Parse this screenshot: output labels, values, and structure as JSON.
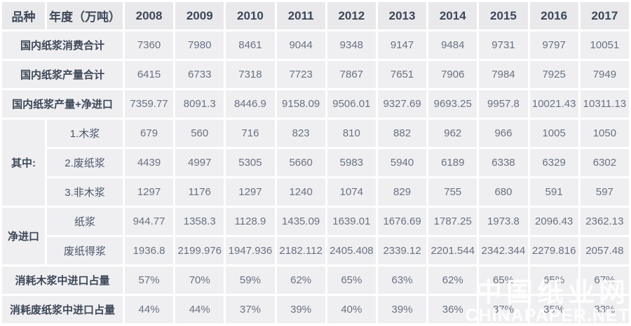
{
  "table": {
    "header": {
      "product_label": "品种",
      "year_label": "年度（万吨）",
      "years": [
        "2008",
        "2009",
        "2010",
        "2011",
        "2012",
        "2013",
        "2014",
        "2015",
        "2016",
        "2017"
      ]
    },
    "sections": [
      {
        "kind": "merged",
        "label": "国内纸浆消费合计",
        "values": [
          "7360",
          "7980",
          "8461",
          "9044",
          "9348",
          "9147",
          "9484",
          "9731",
          "9797",
          "10051"
        ]
      },
      {
        "kind": "merged",
        "label": "国内纸浆产量合计",
        "values": [
          "6415",
          "6733",
          "7318",
          "7723",
          "7867",
          "7651",
          "7906",
          "7984",
          "7925",
          "7949"
        ]
      },
      {
        "kind": "merged",
        "label": "国内纸浆产量+净进口",
        "values": [
          "7359.77",
          "8091.3",
          "8446.9",
          "9158.09",
          "9506.01",
          "9327.69",
          "9693.25",
          "9957.8",
          "10021.43",
          "10311.13"
        ]
      },
      {
        "kind": "grouped",
        "group_label": "其中:",
        "rows": [
          {
            "label": "1.木浆",
            "values": [
              "679",
              "560",
              "716",
              "823",
              "810",
              "882",
              "962",
              "966",
              "1005",
              "1050"
            ]
          },
          {
            "label": "2.废纸浆",
            "values": [
              "4439",
              "4997",
              "5305",
              "5660",
              "5983",
              "5940",
              "6189",
              "6338",
              "6329",
              "6302"
            ]
          },
          {
            "label": "3.非木浆",
            "values": [
              "1297",
              "1176",
              "1297",
              "1240",
              "1074",
              "829",
              "755",
              "680",
              "591",
              "597"
            ]
          }
        ]
      },
      {
        "kind": "grouped",
        "group_label": "净进口",
        "rows": [
          {
            "label": "纸浆",
            "values": [
              "944.77",
              "1358.3",
              "1128.9",
              "1435.09",
              "1639.01",
              "1676.69",
              "1787.25",
              "1973.8",
              "2096.43",
              "2362.13"
            ]
          },
          {
            "label": "废纸得浆",
            "values": [
              "1936.8",
              "2199.976",
              "1947.936",
              "2182.112",
              "2405.408",
              "2339.12",
              "2201.544",
              "2342.344",
              "2279.816",
              "2057.48"
            ]
          }
        ]
      },
      {
        "kind": "merged",
        "label": "消耗木浆中进口占量",
        "values": [
          "57%",
          "70%",
          "59%",
          "62%",
          "65%",
          "63%",
          "62%",
          "65%",
          "65%",
          "67%"
        ]
      },
      {
        "kind": "merged",
        "label": "消耗废纸浆中进口占量",
        "values": [
          "44%",
          "44%",
          "37%",
          "39%",
          "40%",
          "39%",
          "36%",
          "37%",
          "35%",
          "33%"
        ]
      }
    ]
  },
  "watermark": {
    "line1": "中国纸业网",
    "line2": "CHINAPAPER.NET"
  },
  "colors": {
    "header_bg": "#e9e9ec",
    "cell_bg": "#efeff2",
    "header_text": "#3d4757",
    "value_text": "#697180",
    "watermark_text": "#ffffff"
  }
}
